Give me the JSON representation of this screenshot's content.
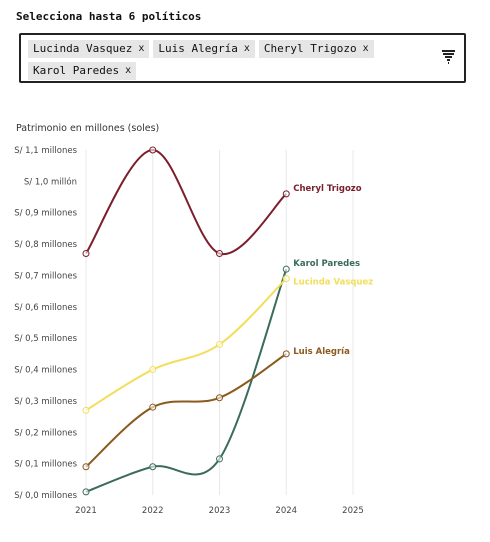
{
  "selector": {
    "label": "Selecciona hasta 6 políticos",
    "remove_symbol": "x",
    "tags": [
      {
        "name": "Lucinda Vasquez"
      },
      {
        "name": "Luis Alegría"
      },
      {
        "name": "Cheryl Trigozo"
      },
      {
        "name": "Karol Paredes"
      }
    ],
    "dropdown_icon": "funnel-pixel-arrow-icon"
  },
  "chart_data": {
    "type": "line",
    "title": "Patrimonio en millones (soles)",
    "xlabel": "",
    "ylabel": "",
    "x": [
      2021,
      2022,
      2023,
      2024
    ],
    "xlim": [
      2021,
      2025
    ],
    "xticks": [
      "2021",
      "2022",
      "2023",
      "2024",
      "2025"
    ],
    "ylim": [
      0,
      1.1
    ],
    "yticks": [
      {
        "value": 0.0,
        "label": "S/ 0,0 millones"
      },
      {
        "value": 0.1,
        "label": "S/ 0,1 millones"
      },
      {
        "value": 0.2,
        "label": "S/ 0,2 millones"
      },
      {
        "value": 0.3,
        "label": "S/ 0,3 millones"
      },
      {
        "value": 0.4,
        "label": "S/ 0,4 millones"
      },
      {
        "value": 0.5,
        "label": "S/ 0,5 millones"
      },
      {
        "value": 0.6,
        "label": "S/ 0,6 millones"
      },
      {
        "value": 0.7,
        "label": "S/ 0,7 millones"
      },
      {
        "value": 0.8,
        "label": "S/ 0,8 millones"
      },
      {
        "value": 0.9,
        "label": "S/ 0,9 millones"
      },
      {
        "value": 1.0,
        "label": "S/ 1,0 millón"
      },
      {
        "value": 1.1,
        "label": "S/ 1,1 millones"
      }
    ],
    "grid": "vertical",
    "series": [
      {
        "name": "Cheryl Trigozo",
        "color": "#7a1f2b",
        "values": [
          0.77,
          1.1,
          0.77,
          0.96
        ]
      },
      {
        "name": "Karol Paredes",
        "color": "#3b6b5c",
        "values": [
          0.01,
          0.09,
          0.115,
          0.72
        ]
      },
      {
        "name": "Lucinda Vasquez",
        "color": "#f2de5c",
        "values": [
          0.27,
          0.4,
          0.48,
          0.69
        ]
      },
      {
        "name": "Luis Alegría",
        "color": "#8a5a1e",
        "values": [
          0.09,
          0.28,
          0.31,
          0.45
        ]
      }
    ]
  }
}
